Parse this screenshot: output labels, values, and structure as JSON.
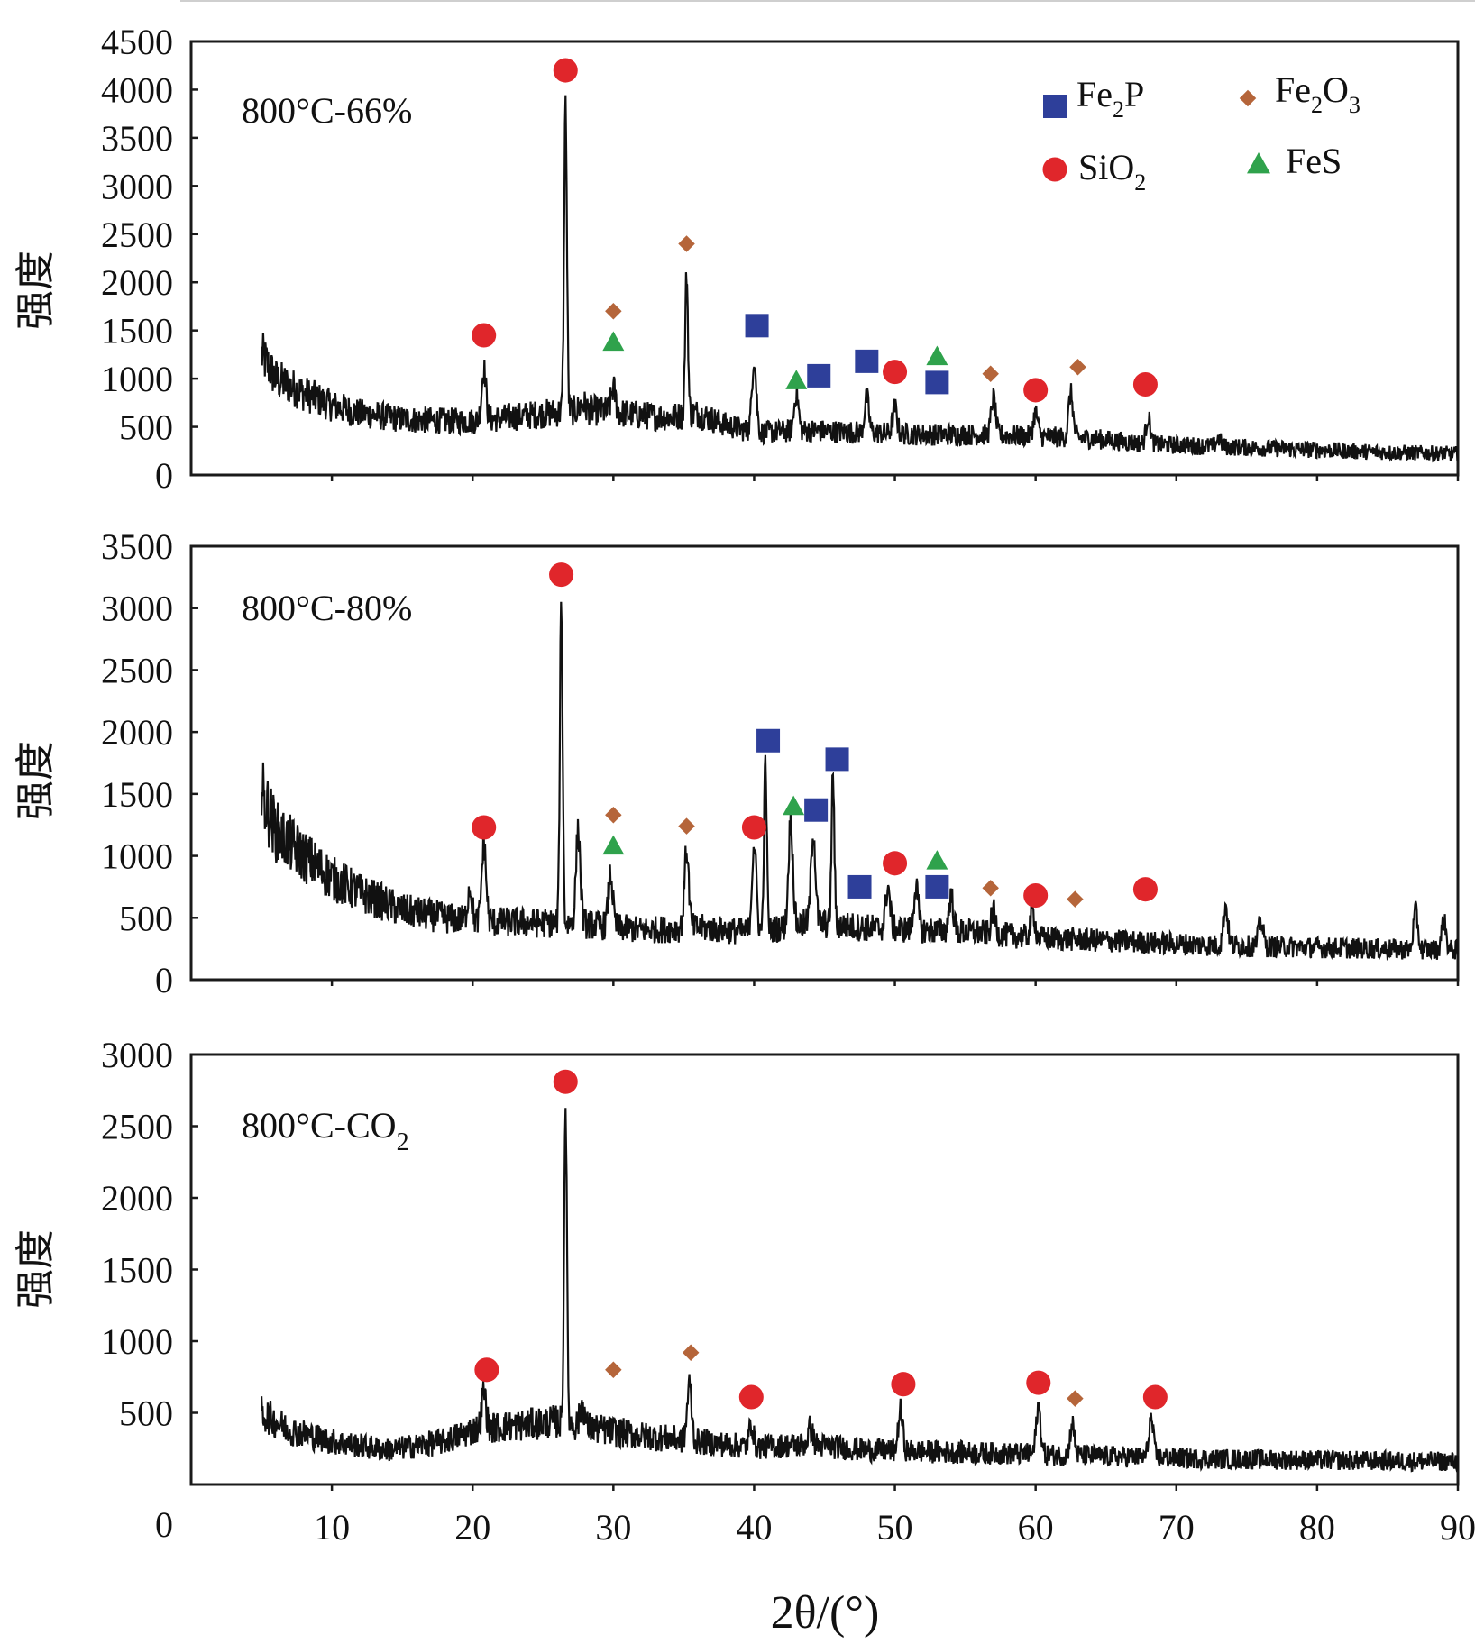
{
  "chart_data": [
    {
      "type": "line",
      "panel_label": "800°C-66%",
      "ylabel": "强度",
      "ylim": [
        0,
        4500
      ],
      "yticks": [
        "0",
        "500",
        "1000",
        "1500",
        "2000",
        "2500",
        "3000",
        "3500",
        "4000",
        "4500"
      ],
      "xlim": [
        0,
        90
      ],
      "series": [
        {
          "name": "800°C-66%",
          "baseline": [
            [
              5,
              1250
            ],
            [
              6,
              1000
            ],
            [
              8,
              850
            ],
            [
              10,
              720
            ],
            [
              12,
              640
            ],
            [
              15,
              580
            ],
            [
              18,
              560
            ],
            [
              20,
              560
            ],
            [
              24,
              620
            ],
            [
              28,
              680
            ],
            [
              32,
              620
            ],
            [
              34,
              600
            ],
            [
              36,
              640
            ],
            [
              38,
              520
            ],
            [
              40,
              440
            ],
            [
              44,
              460
            ],
            [
              48,
              440
            ],
            [
              52,
              420
            ],
            [
              56,
              420
            ],
            [
              60,
              400
            ],
            [
              64,
              380
            ],
            [
              68,
              320
            ],
            [
              72,
              300
            ],
            [
              76,
              280
            ],
            [
              80,
              260
            ],
            [
              84,
              240
            ],
            [
              90,
              220
            ]
          ],
          "peaks": [
            [
              20.8,
              1100
            ],
            [
              26.6,
              3850
            ],
            [
              27.8,
              750
            ],
            [
              30,
              900
            ],
            [
              35.2,
              2100
            ],
            [
              40,
              1200
            ],
            [
              43,
              850
            ],
            [
              48,
              800
            ],
            [
              50,
              700
            ],
            [
              57,
              800
            ],
            [
              60,
              650
            ],
            [
              62.5,
              850
            ],
            [
              68,
              600
            ],
            [
              73,
              380
            ]
          ]
        }
      ],
      "markers": [
        {
          "phase": "SiO2",
          "x": 20.8,
          "y": 1450
        },
        {
          "phase": "SiO2",
          "x": 26.6,
          "y": 4200
        },
        {
          "phase": "Fe2O3",
          "x": 30,
          "y": 1700
        },
        {
          "phase": "FeS",
          "x": 30,
          "y": 1380
        },
        {
          "phase": "Fe2O3",
          "x": 35.2,
          "y": 2400
        },
        {
          "phase": "Fe2P",
          "x": 40.2,
          "y": 1550
        },
        {
          "phase": "FeS",
          "x": 43,
          "y": 980
        },
        {
          "phase": "Fe2P",
          "x": 44.6,
          "y": 1030
        },
        {
          "phase": "Fe2P",
          "x": 48,
          "y": 1180
        },
        {
          "phase": "SiO2",
          "x": 50,
          "y": 1070
        },
        {
          "phase": "FeS",
          "x": 53,
          "y": 1230
        },
        {
          "phase": "Fe2P",
          "x": 53,
          "y": 960
        },
        {
          "phase": "Fe2O3",
          "x": 56.8,
          "y": 1050
        },
        {
          "phase": "SiO2",
          "x": 60,
          "y": 880
        },
        {
          "phase": "Fe2O3",
          "x": 63,
          "y": 1120
        },
        {
          "phase": "SiO2",
          "x": 67.8,
          "y": 940
        }
      ]
    },
    {
      "type": "line",
      "panel_label": "800°C-80%",
      "ylabel": "强度",
      "ylim": [
        0,
        3500
      ],
      "yticks": [
        "0",
        "500",
        "1000",
        "1500",
        "2000",
        "2500",
        "3000",
        "3500"
      ],
      "xlim": [
        0,
        90
      ],
      "series": [
        {
          "name": "800°C-80%",
          "baseline": [
            [
              5,
              1500
            ],
            [
              6,
              1200
            ],
            [
              8,
              1000
            ],
            [
              10,
              820
            ],
            [
              12,
              700
            ],
            [
              15,
              560
            ],
            [
              18,
              500
            ],
            [
              20,
              470
            ],
            [
              24,
              460
            ],
            [
              28,
              450
            ],
            [
              32,
              400
            ],
            [
              36,
              420
            ],
            [
              40,
              380
            ],
            [
              44,
              460
            ],
            [
              48,
              420
            ],
            [
              52,
              400
            ],
            [
              56,
              380
            ],
            [
              60,
              340
            ],
            [
              64,
              320
            ],
            [
              68,
              300
            ],
            [
              72,
              280
            ],
            [
              76,
              270
            ],
            [
              80,
              260
            ],
            [
              84,
              250
            ],
            [
              90,
              240
            ]
          ],
          "peaks": [
            [
              19.8,
              750
            ],
            [
              20.8,
              1100
            ],
            [
              26.3,
              3050
            ],
            [
              27.5,
              1200
            ],
            [
              29.8,
              850
            ],
            [
              35.2,
              1050
            ],
            [
              40,
              1100
            ],
            [
              40.8,
              1750
            ],
            [
              42.6,
              1300
            ],
            [
              44.2,
              1200
            ],
            [
              45.6,
              1650
            ],
            [
              49.5,
              750
            ],
            [
              51.5,
              750
            ],
            [
              54,
              680
            ],
            [
              57,
              550
            ],
            [
              59.8,
              550
            ],
            [
              73.5,
              600
            ],
            [
              76,
              480
            ],
            [
              87,
              550
            ],
            [
              89,
              480
            ]
          ]
        }
      ],
      "markers": [
        {
          "phase": "SiO2",
          "x": 20.8,
          "y": 1230
        },
        {
          "phase": "SiO2",
          "x": 26.3,
          "y": 3270
        },
        {
          "phase": "Fe2O3",
          "x": 30,
          "y": 1330
        },
        {
          "phase": "FeS",
          "x": 30,
          "y": 1080
        },
        {
          "phase": "Fe2O3",
          "x": 35.2,
          "y": 1240
        },
        {
          "phase": "SiO2",
          "x": 40,
          "y": 1230
        },
        {
          "phase": "Fe2P",
          "x": 41,
          "y": 1930
        },
        {
          "phase": "FeS",
          "x": 42.8,
          "y": 1400
        },
        {
          "phase": "Fe2P",
          "x": 44.4,
          "y": 1370
        },
        {
          "phase": "Fe2P",
          "x": 45.9,
          "y": 1780
        },
        {
          "phase": "Fe2P",
          "x": 47.5,
          "y": 750
        },
        {
          "phase": "SiO2",
          "x": 50,
          "y": 940
        },
        {
          "phase": "FeS",
          "x": 53,
          "y": 960
        },
        {
          "phase": "Fe2P",
          "x": 53,
          "y": 750
        },
        {
          "phase": "Fe2O3",
          "x": 56.8,
          "y": 740
        },
        {
          "phase": "SiO2",
          "x": 60,
          "y": 680
        },
        {
          "phase": "Fe2O3",
          "x": 62.8,
          "y": 650
        },
        {
          "phase": "SiO2",
          "x": 67.8,
          "y": 730
        }
      ]
    },
    {
      "type": "line",
      "panel_label": "800°C-CO",
      "panel_label_sub": "2",
      "ylabel": "强度",
      "ylim": [
        0,
        3000
      ],
      "yticks": [
        "0",
        "500",
        "1000",
        "1500",
        "2000",
        "2500",
        "3000"
      ],
      "xlim": [
        0,
        90
      ],
      "xticks": [
        "10",
        "20",
        "30",
        "40",
        "50",
        "60",
        "70",
        "80",
        "90"
      ],
      "xlabel": "2θ/(°)",
      "series": [
        {
          "name": "800°C-CO2",
          "baseline": [
            [
              5,
              500
            ],
            [
              7,
              380
            ],
            [
              10,
              300
            ],
            [
              14,
              240
            ],
            [
              18,
              300
            ],
            [
              20,
              380
            ],
            [
              24,
              420
            ],
            [
              26,
              440
            ],
            [
              28,
              400
            ],
            [
              32,
              340
            ],
            [
              36,
              300
            ],
            [
              40,
              260
            ],
            [
              44,
              280
            ],
            [
              48,
              240
            ],
            [
              52,
              230
            ],
            [
              56,
              220
            ],
            [
              60,
              210
            ],
            [
              64,
              200
            ],
            [
              68,
              190
            ],
            [
              72,
              180
            ],
            [
              76,
              175
            ],
            [
              80,
              170
            ],
            [
              84,
              165
            ],
            [
              90,
              160
            ]
          ],
          "peaks": [
            [
              20.8,
              650
            ],
            [
              26.6,
              2650
            ],
            [
              27.8,
              560
            ],
            [
              35.4,
              700
            ],
            [
              39.8,
              420
            ],
            [
              44,
              400
            ],
            [
              50.4,
              520
            ],
            [
              60.2,
              550
            ],
            [
              62.6,
              420
            ],
            [
              68.2,
              460
            ]
          ]
        }
      ],
      "markers": [
        {
          "phase": "SiO2",
          "x": 21,
          "y": 800
        },
        {
          "phase": "SiO2",
          "x": 26.6,
          "y": 2810
        },
        {
          "phase": "Fe2O3",
          "x": 30,
          "y": 800
        },
        {
          "phase": "Fe2O3",
          "x": 35.5,
          "y": 920
        },
        {
          "phase": "SiO2",
          "x": 39.8,
          "y": 610
        },
        {
          "phase": "SiO2",
          "x": 50.6,
          "y": 700
        },
        {
          "phase": "SiO2",
          "x": 60.2,
          "y": 710
        },
        {
          "phase": "Fe2O3",
          "x": 62.8,
          "y": 600
        },
        {
          "phase": "SiO2",
          "x": 68.5,
          "y": 610
        }
      ]
    }
  ],
  "legend": [
    {
      "phase": "Fe2P",
      "label": "Fe",
      "sub": "2",
      "label_after": "P",
      "shape": "square",
      "color": "#2e3f9a"
    },
    {
      "phase": "Fe2O3",
      "label": "Fe",
      "sub": "2",
      "label_after": "O",
      "sub2": "3",
      "shape": "diamond",
      "color": "#b5653a"
    },
    {
      "phase": "SiO2",
      "label": "SiO",
      "sub": "2",
      "label_after": "",
      "shape": "circle",
      "color": "#e0262b"
    },
    {
      "phase": "FeS",
      "label": "FeS",
      "sub": "",
      "label_after": "",
      "shape": "triangle",
      "color": "#2fa24c"
    }
  ],
  "colors": {
    "trace": "#111111",
    "axis": "#1a1a1a"
  }
}
